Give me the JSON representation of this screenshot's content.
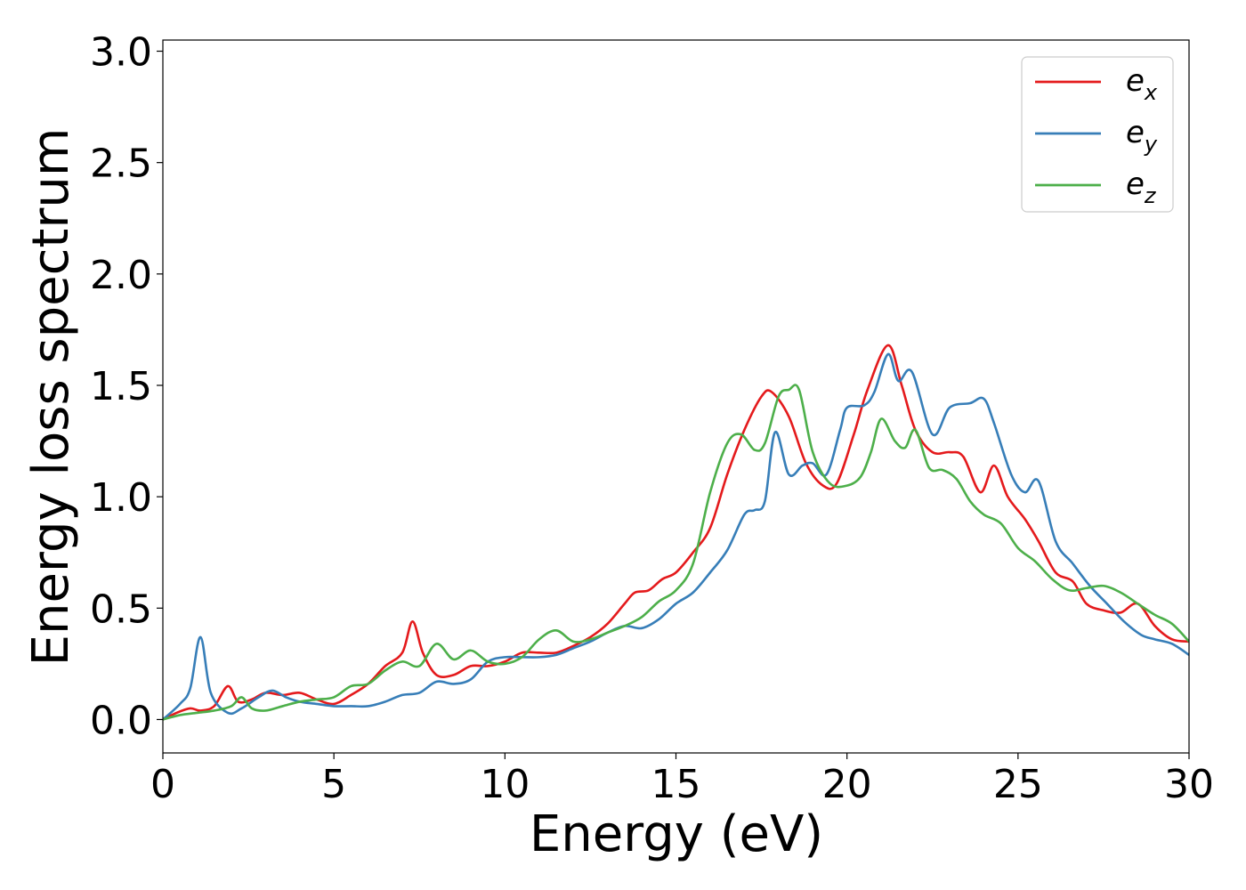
{
  "chart_data": {
    "type": "line",
    "xlabel": "Energy (eV)",
    "ylabel": "Energy loss spectrum",
    "xlim": [
      0,
      30
    ],
    "ylim": [
      -0.15,
      3.05
    ],
    "xticks": [
      "0",
      "5",
      "10",
      "15",
      "20",
      "25",
      "30"
    ],
    "yticks": [
      "0.0",
      "0.5",
      "1.0",
      "1.5",
      "2.0",
      "2.5",
      "3.0"
    ],
    "grid": false,
    "legend_position": "top-right",
    "series": [
      {
        "name": "e",
        "subscript": "x",
        "color": "#e41a1c",
        "points": [
          [
            0,
            0
          ],
          [
            0.4,
            0.03
          ],
          [
            0.8,
            0.05
          ],
          [
            1.1,
            0.04
          ],
          [
            1.5,
            0.06
          ],
          [
            1.9,
            0.15
          ],
          [
            2.2,
            0.08
          ],
          [
            2.6,
            0.09
          ],
          [
            3.0,
            0.12
          ],
          [
            3.5,
            0.11
          ],
          [
            4.0,
            0.12
          ],
          [
            4.5,
            0.09
          ],
          [
            5.0,
            0.07
          ],
          [
            5.5,
            0.11
          ],
          [
            6.0,
            0.16
          ],
          [
            6.5,
            0.24
          ],
          [
            7.0,
            0.3
          ],
          [
            7.3,
            0.44
          ],
          [
            7.6,
            0.3
          ],
          [
            8.0,
            0.2
          ],
          [
            8.5,
            0.2
          ],
          [
            9.0,
            0.24
          ],
          [
            9.5,
            0.24
          ],
          [
            10.0,
            0.26
          ],
          [
            10.5,
            0.3
          ],
          [
            11.0,
            0.3
          ],
          [
            11.5,
            0.3
          ],
          [
            12.0,
            0.33
          ],
          [
            12.5,
            0.37
          ],
          [
            13.0,
            0.43
          ],
          [
            13.5,
            0.52
          ],
          [
            13.8,
            0.57
          ],
          [
            14.2,
            0.58
          ],
          [
            14.6,
            0.63
          ],
          [
            15.0,
            0.66
          ],
          [
            15.5,
            0.75
          ],
          [
            16.0,
            0.86
          ],
          [
            16.5,
            1.1
          ],
          [
            17.0,
            1.3
          ],
          [
            17.5,
            1.45
          ],
          [
            17.8,
            1.47
          ],
          [
            18.3,
            1.36
          ],
          [
            18.8,
            1.15
          ],
          [
            19.3,
            1.05
          ],
          [
            19.7,
            1.06
          ],
          [
            20.2,
            1.28
          ],
          [
            20.6,
            1.48
          ],
          [
            21.2,
            1.68
          ],
          [
            21.6,
            1.5
          ],
          [
            22.0,
            1.3
          ],
          [
            22.5,
            1.2
          ],
          [
            23.0,
            1.2
          ],
          [
            23.4,
            1.18
          ],
          [
            23.9,
            1.02
          ],
          [
            24.3,
            1.14
          ],
          [
            24.7,
            1.0
          ],
          [
            25.2,
            0.9
          ],
          [
            25.6,
            0.8
          ],
          [
            26.1,
            0.66
          ],
          [
            26.6,
            0.62
          ],
          [
            27.0,
            0.52
          ],
          [
            27.5,
            0.49
          ],
          [
            28.0,
            0.48
          ],
          [
            28.5,
            0.52
          ],
          [
            29.0,
            0.42
          ],
          [
            29.5,
            0.36
          ],
          [
            30.0,
            0.35
          ]
        ]
      },
      {
        "name": "e",
        "subscript": "y",
        "color": "#377eb8",
        "points": [
          [
            0,
            0
          ],
          [
            0.5,
            0.07
          ],
          [
            0.8,
            0.14
          ],
          [
            1.1,
            0.37
          ],
          [
            1.4,
            0.12
          ],
          [
            1.9,
            0.03
          ],
          [
            2.3,
            0.05
          ],
          [
            2.8,
            0.1
          ],
          [
            3.2,
            0.13
          ],
          [
            3.6,
            0.1
          ],
          [
            4.0,
            0.08
          ],
          [
            4.5,
            0.07
          ],
          [
            5.0,
            0.06
          ],
          [
            5.5,
            0.06
          ],
          [
            6.0,
            0.06
          ],
          [
            6.5,
            0.08
          ],
          [
            7.0,
            0.11
          ],
          [
            7.5,
            0.12
          ],
          [
            8.0,
            0.17
          ],
          [
            8.5,
            0.16
          ],
          [
            9.0,
            0.18
          ],
          [
            9.5,
            0.26
          ],
          [
            10.0,
            0.28
          ],
          [
            10.5,
            0.28
          ],
          [
            11.0,
            0.28
          ],
          [
            11.5,
            0.29
          ],
          [
            12.0,
            0.32
          ],
          [
            12.5,
            0.35
          ],
          [
            13.0,
            0.39
          ],
          [
            13.5,
            0.42
          ],
          [
            14.0,
            0.41
          ],
          [
            14.5,
            0.45
          ],
          [
            15.0,
            0.52
          ],
          [
            15.5,
            0.57
          ],
          [
            16.0,
            0.66
          ],
          [
            16.5,
            0.76
          ],
          [
            17.0,
            0.92
          ],
          [
            17.3,
            0.94
          ],
          [
            17.6,
            0.98
          ],
          [
            17.9,
            1.29
          ],
          [
            18.3,
            1.1
          ],
          [
            18.7,
            1.14
          ],
          [
            19.0,
            1.15
          ],
          [
            19.4,
            1.1
          ],
          [
            19.8,
            1.3
          ],
          [
            20.0,
            1.4
          ],
          [
            20.5,
            1.41
          ],
          [
            20.8,
            1.47
          ],
          [
            21.2,
            1.64
          ],
          [
            21.5,
            1.52
          ],
          [
            21.9,
            1.56
          ],
          [
            22.5,
            1.28
          ],
          [
            23.0,
            1.4
          ],
          [
            23.6,
            1.42
          ],
          [
            24.0,
            1.44
          ],
          [
            24.3,
            1.33
          ],
          [
            24.8,
            1.1
          ],
          [
            25.2,
            1.02
          ],
          [
            25.6,
            1.07
          ],
          [
            26.1,
            0.8
          ],
          [
            26.6,
            0.7
          ],
          [
            27.1,
            0.6
          ],
          [
            27.6,
            0.52
          ],
          [
            28.1,
            0.44
          ],
          [
            28.6,
            0.38
          ],
          [
            29.0,
            0.36
          ],
          [
            29.5,
            0.34
          ],
          [
            30.0,
            0.29
          ]
        ]
      },
      {
        "name": "e",
        "subscript": "z",
        "color": "#4daf4a",
        "points": [
          [
            0,
            0
          ],
          [
            0.5,
            0.02
          ],
          [
            1.0,
            0.03
          ],
          [
            1.5,
            0.04
          ],
          [
            2.0,
            0.06
          ],
          [
            2.3,
            0.1
          ],
          [
            2.6,
            0.05
          ],
          [
            3.0,
            0.04
          ],
          [
            3.5,
            0.06
          ],
          [
            4.0,
            0.08
          ],
          [
            4.5,
            0.09
          ],
          [
            5.0,
            0.1
          ],
          [
            5.5,
            0.15
          ],
          [
            6.0,
            0.16
          ],
          [
            6.5,
            0.22
          ],
          [
            7.0,
            0.26
          ],
          [
            7.5,
            0.24
          ],
          [
            8.0,
            0.34
          ],
          [
            8.5,
            0.27
          ],
          [
            9.0,
            0.31
          ],
          [
            9.5,
            0.26
          ],
          [
            10.0,
            0.25
          ],
          [
            10.5,
            0.28
          ],
          [
            11.0,
            0.36
          ],
          [
            11.5,
            0.4
          ],
          [
            12.0,
            0.35
          ],
          [
            12.5,
            0.36
          ],
          [
            13.0,
            0.39
          ],
          [
            13.5,
            0.42
          ],
          [
            14.0,
            0.46
          ],
          [
            14.5,
            0.53
          ],
          [
            15.0,
            0.58
          ],
          [
            15.5,
            0.7
          ],
          [
            16.0,
            1.02
          ],
          [
            16.5,
            1.24
          ],
          [
            16.9,
            1.28
          ],
          [
            17.3,
            1.21
          ],
          [
            17.6,
            1.24
          ],
          [
            18.0,
            1.45
          ],
          [
            18.3,
            1.48
          ],
          [
            18.6,
            1.48
          ],
          [
            19.0,
            1.2
          ],
          [
            19.5,
            1.06
          ],
          [
            20.0,
            1.05
          ],
          [
            20.4,
            1.09
          ],
          [
            20.7,
            1.2
          ],
          [
            21.0,
            1.35
          ],
          [
            21.4,
            1.25
          ],
          [
            21.7,
            1.22
          ],
          [
            22.0,
            1.3
          ],
          [
            22.4,
            1.13
          ],
          [
            22.8,
            1.12
          ],
          [
            23.2,
            1.08
          ],
          [
            23.6,
            0.98
          ],
          [
            24.0,
            0.92
          ],
          [
            24.5,
            0.88
          ],
          [
            25.0,
            0.77
          ],
          [
            25.5,
            0.71
          ],
          [
            26.0,
            0.63
          ],
          [
            26.5,
            0.58
          ],
          [
            27.0,
            0.59
          ],
          [
            27.5,
            0.6
          ],
          [
            28.0,
            0.57
          ],
          [
            28.5,
            0.52
          ],
          [
            29.0,
            0.47
          ],
          [
            29.5,
            0.43
          ],
          [
            30.0,
            0.35
          ]
        ]
      }
    ]
  }
}
